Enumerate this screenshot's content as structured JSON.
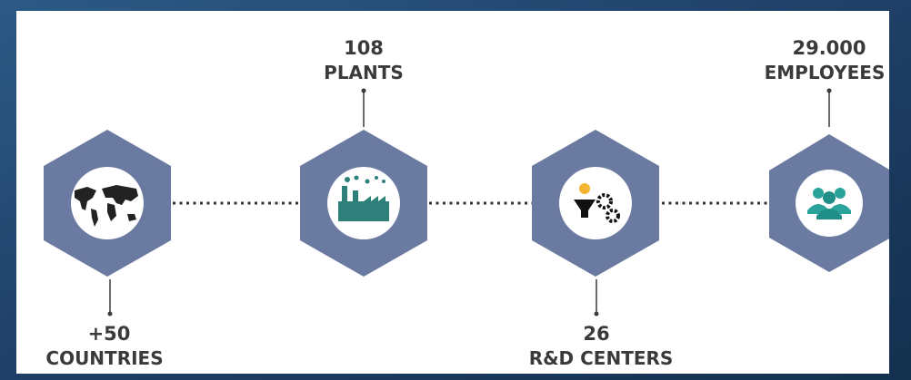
{
  "nodes": [
    {
      "number": "+50",
      "label": "COUNTRIES"
    },
    {
      "number": "108",
      "label": "PLANTS"
    },
    {
      "number": "26",
      "label": "R&D CENTERS"
    },
    {
      "number": "29.000",
      "label": "EMPLOYEES"
    }
  ]
}
